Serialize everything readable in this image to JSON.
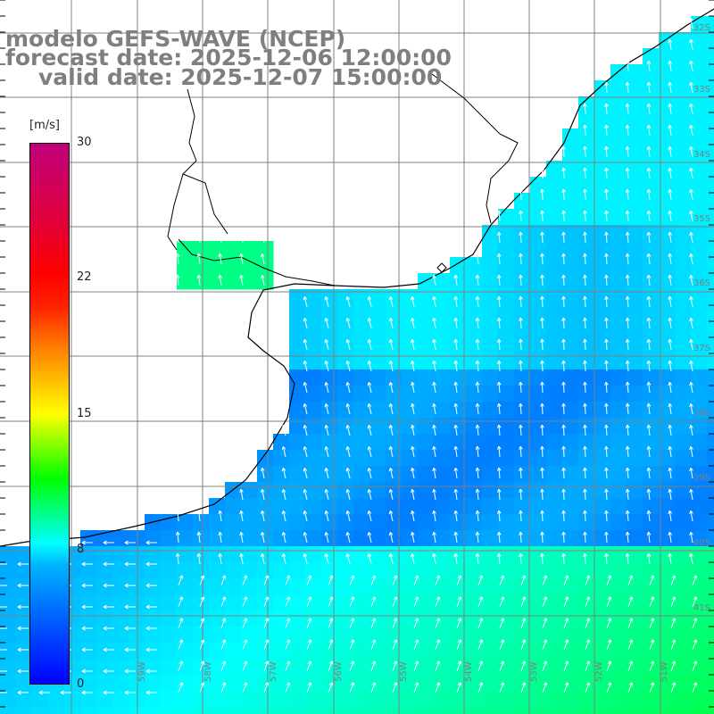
{
  "title": {
    "line1": "modelo GEFS-WAVE (NCEP)",
    "line2": "forecast date: 2025-12-06 12:00:00",
    "line3": "valid date: 2025-12-07 15:00:00"
  },
  "colorbar": {
    "unit": "[m/s]",
    "min": 0,
    "max": 30,
    "ticks": [
      "0",
      "8",
      "15",
      "22",
      "30"
    ],
    "colors": [
      "#0000ff",
      "#00b4ff",
      "#00ffff",
      "#00ff00",
      "#ffff00",
      "#ff8000",
      "#ff0000",
      "#c0007c"
    ]
  },
  "map": {
    "lat_labels": [
      "32S",
      "33S",
      "34S",
      "35S",
      "36S",
      "37S",
      "38S",
      "39S",
      "40S",
      "41S"
    ],
    "lon_labels": [
      "59W",
      "58W",
      "57W",
      "56W",
      "55W",
      "54W",
      "53W",
      "52W",
      "51W"
    ],
    "land_color": "#ffffff",
    "grid_color": "#808080",
    "arrow_color": "#ffffff",
    "coast_color": "#000000"
  }
}
